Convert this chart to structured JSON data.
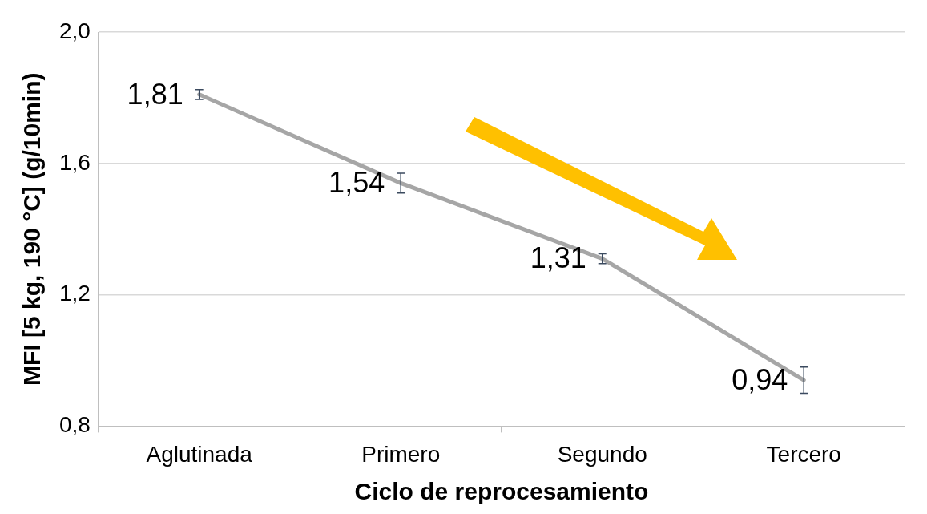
{
  "chart_data": {
    "type": "line",
    "xlabel": "Ciclo de reprocesamiento",
    "ylabel": "MFI [5 kg, 190 °C] (g/10min)",
    "categories": [
      "Aglutinada",
      "Primero",
      "Segundo",
      "Tercero"
    ],
    "series": [
      {
        "color": "#a6a6a6",
        "values": [
          1.81,
          1.54,
          1.31,
          0.94
        ],
        "errors": [
          0.015,
          0.03,
          0.015,
          0.04
        ],
        "value_labels": [
          "1,81",
          "1,54",
          "1,31",
          "0,94"
        ]
      }
    ],
    "ylim": [
      0.8,
      2.0
    ],
    "yticks": [
      {
        "value": 0.8,
        "label": "0,8"
      },
      {
        "value": 1.2,
        "label": "1,2"
      },
      {
        "value": 1.6,
        "label": "1,6"
      },
      {
        "value": 2.0,
        "label": "2,0"
      }
    ],
    "grid": "y",
    "legend": false,
    "line_style": "solid"
  }
}
